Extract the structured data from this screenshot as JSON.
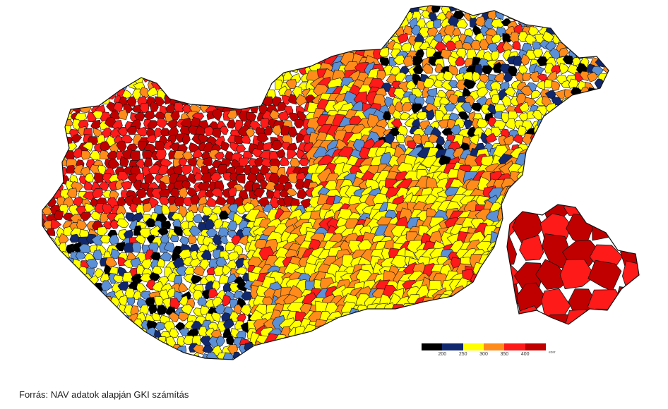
{
  "map": {
    "colors": {
      "black": "#000000",
      "navy": "#12286e",
      "blue": "#5b8fd6",
      "yellow": "#ffff00",
      "orange": "#ff8c1a",
      "red": "#ff1a1a",
      "darkred": "#c00000",
      "border": "#111111"
    }
  },
  "legend": {
    "colors": [
      "#000000",
      "#12286e",
      "#ffff00",
      "#ff8c1a",
      "#ff1a1a",
      "#c00000"
    ],
    "ticks": [
      "200",
      "250",
      "300",
      "350",
      "400"
    ],
    "unit": "ezer"
  },
  "source_note": "Forrás: NAV adatok alapján GKI számítás"
}
